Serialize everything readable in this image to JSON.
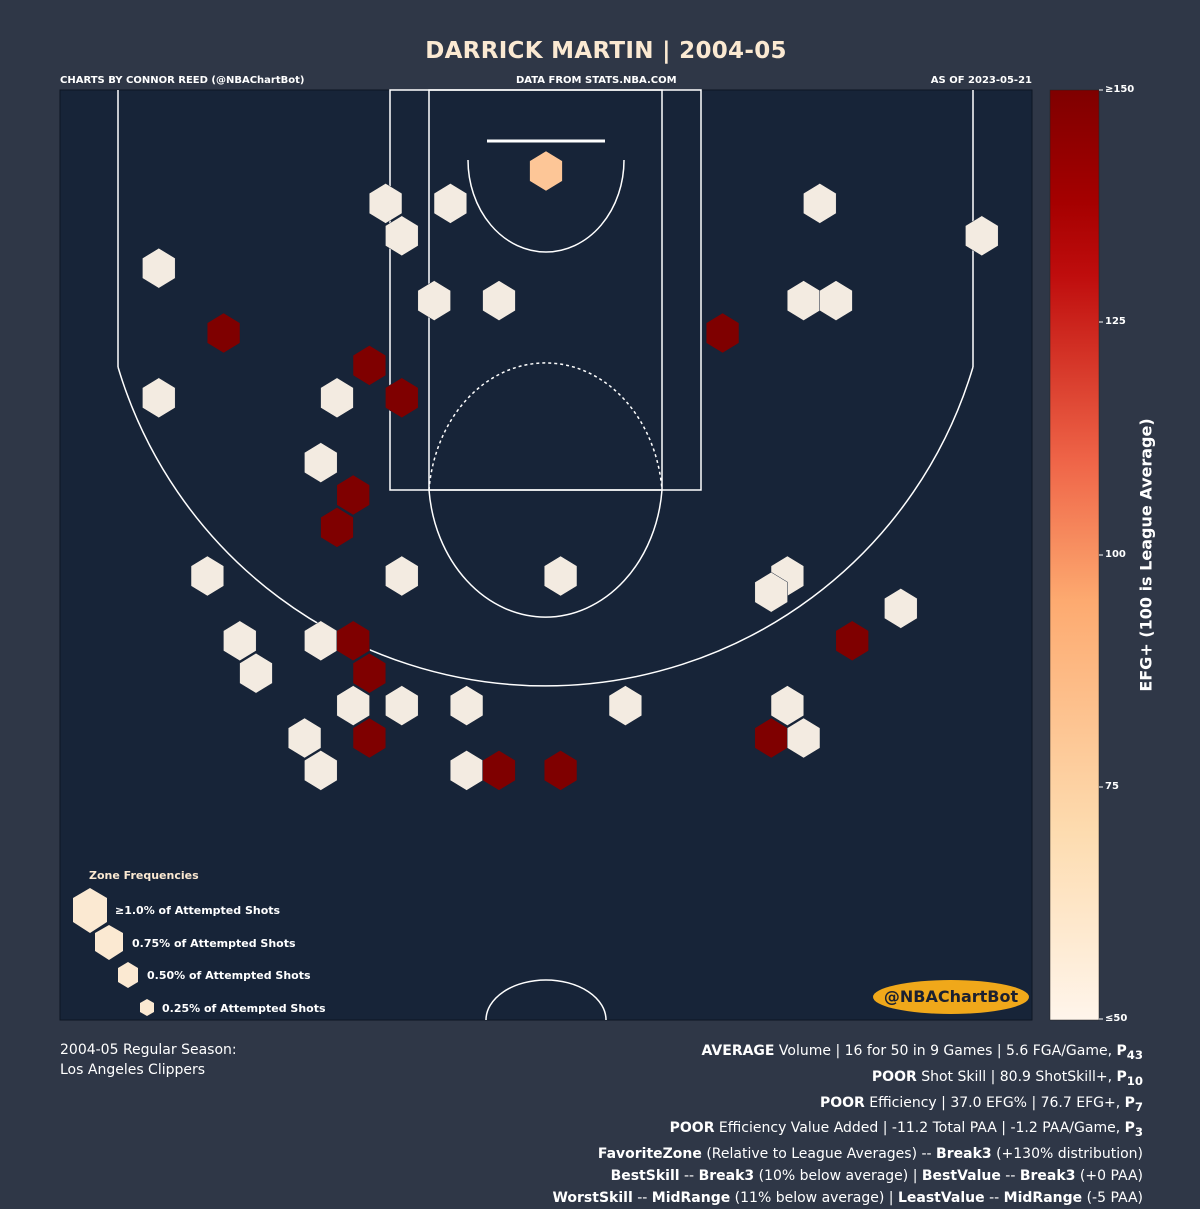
{
  "header": {
    "title": "DARRICK MARTIN | 2004-05",
    "credit": "CHARTS BY CONNOR REED (@NBAChartBot)",
    "source": "DATA FROM STATS.NBA.COM",
    "asof": "AS OF 2023-05-21"
  },
  "chart_data": {
    "type": "hexbin",
    "title": "DARRICK MARTIN | 2004-05",
    "colorbar": {
      "label": "EFG+ (100 is League Average)",
      "range": [
        50,
        150
      ],
      "ticks": [
        "≥150",
        "125",
        "100",
        "75",
        "≤50"
      ],
      "colors": [
        "#fff5eb",
        "#fddcb0",
        "#fdaa70",
        "#ef6548",
        "#cb181d",
        "#a50f15",
        "#7f0000"
      ]
    },
    "hexes": [
      {
        "x": -239,
        "y": 211,
        "efg_plus": 50
      },
      {
        "x": -199,
        "y": 171,
        "efg_plus": 150
      },
      {
        "x": -239,
        "y": 131,
        "efg_plus": 50
      },
      {
        "x": -99,
        "y": 251,
        "efg_plus": 50
      },
      {
        "x": -59,
        "y": 251,
        "efg_plus": 50
      },
      {
        "x": -89,
        "y": 231,
        "efg_plus": 50
      },
      {
        "x": -69,
        "y": 191,
        "efg_plus": 50
      },
      {
        "x": -29,
        "y": 191,
        "efg_plus": 50
      },
      {
        "x": 0,
        "y": 271,
        "efg_plus": 80
      },
      {
        "x": -109,
        "y": 151,
        "efg_plus": 150
      },
      {
        "x": -89,
        "y": 131,
        "efg_plus": 150
      },
      {
        "x": -129,
        "y": 131,
        "efg_plus": 50
      },
      {
        "x": -139,
        "y": 91,
        "efg_plus": 50
      },
      {
        "x": -119,
        "y": 71,
        "efg_plus": 150
      },
      {
        "x": -129,
        "y": 51,
        "efg_plus": 150
      },
      {
        "x": 169,
        "y": 251,
        "efg_plus": 50
      },
      {
        "x": 269,
        "y": 231,
        "efg_plus": 50
      },
      {
        "x": 159,
        "y": 191,
        "efg_plus": 50
      },
      {
        "x": 179,
        "y": 191,
        "efg_plus": 50
      },
      {
        "x": 109,
        "y": 171,
        "efg_plus": 150
      },
      {
        "x": -209,
        "y": 21,
        "efg_plus": 50
      },
      {
        "x": -89,
        "y": 21,
        "efg_plus": 50
      },
      {
        "x": 9,
        "y": 21,
        "efg_plus": 50
      },
      {
        "x": 149,
        "y": 21,
        "efg_plus": 50
      },
      {
        "x": 139,
        "y": 11,
        "efg_plus": 50
      },
      {
        "x": 219,
        "y": 1,
        "efg_plus": 50
      },
      {
        "x": 189,
        "y": -19,
        "efg_plus": 150
      },
      {
        "x": -189,
        "y": -19,
        "efg_plus": 50
      },
      {
        "x": -179,
        "y": -39,
        "efg_plus": 50
      },
      {
        "x": -139,
        "y": -19,
        "efg_plus": 50
      },
      {
        "x": -119,
        "y": -19,
        "efg_plus": 150
      },
      {
        "x": -109,
        "y": -39,
        "efg_plus": 150
      },
      {
        "x": -119,
        "y": -59,
        "efg_plus": 50
      },
      {
        "x": -89,
        "y": -59,
        "efg_plus": 50
      },
      {
        "x": -49,
        "y": -59,
        "efg_plus": 50
      },
      {
        "x": 49,
        "y": -59,
        "efg_plus": 50
      },
      {
        "x": 149,
        "y": -59,
        "efg_plus": 50
      },
      {
        "x": -149,
        "y": -79,
        "efg_plus": 50
      },
      {
        "x": -109,
        "y": -79,
        "efg_plus": 150
      },
      {
        "x": 139,
        "y": -79,
        "efg_plus": 150
      },
      {
        "x": 159,
        "y": -79,
        "efg_plus": 50
      },
      {
        "x": -139,
        "y": -99,
        "efg_plus": 50
      },
      {
        "x": -49,
        "y": -99,
        "efg_plus": 50
      },
      {
        "x": -29,
        "y": -99,
        "efg_plus": 150
      },
      {
        "x": 9,
        "y": -99,
        "efg_plus": 150
      }
    ],
    "legend": {
      "title": "Zone Frequencies",
      "entries": [
        "≥1.0% of Attempted Shots",
        "0.75% of Attempted Shots",
        "0.50% of Attempted Shots",
        "0.25% of Attempted Shots"
      ]
    }
  },
  "footer": {
    "season_line1": "2004-05 Regular Season:",
    "season_line2": "Los Angeles Clippers",
    "badge": "@NBAChartBot",
    "lines": [
      {
        "b1": "AVERAGE",
        "t1": " Volume | 16 for 50 in 9 Games | 5.6 FGA/Game, ",
        "b2": "P",
        "sub": "43"
      },
      {
        "b1": "POOR",
        "t1": " Shot Skill | 80.9 ShotSkill+, ",
        "b2": "P",
        "sub": "10"
      },
      {
        "b1": "POOR",
        "t1": " Efficiency | 37.0 EFG% | 76.7 EFG+, ",
        "b2": "P",
        "sub": "7"
      },
      {
        "b1": "POOR",
        "t1": " Efficiency Value Added | -11.2 Total PAA | -1.2 PAA/Game, ",
        "b2": "P",
        "sub": "3"
      }
    ],
    "favorite": {
      "a": "FavoriteZone",
      "b": " (Relative to League Averages) -- ",
      "c": "Break3",
      "d": " (+130% distribution)"
    },
    "best": {
      "a": "BestSkill",
      "b": " -- ",
      "c": "Break3",
      "d": " (10% below average) | ",
      "e": "BestValue",
      "f": " -- ",
      "g": "Break3",
      "h": " (+0 PAA)"
    },
    "worst": {
      "a": "WorstSkill",
      "b": " -- ",
      "c": "MidRange",
      "d": " (11% below average) | ",
      "e": "LeastValue",
      "f": " -- ",
      "g": "MidRange",
      "h": " (-5 PAA)"
    }
  }
}
